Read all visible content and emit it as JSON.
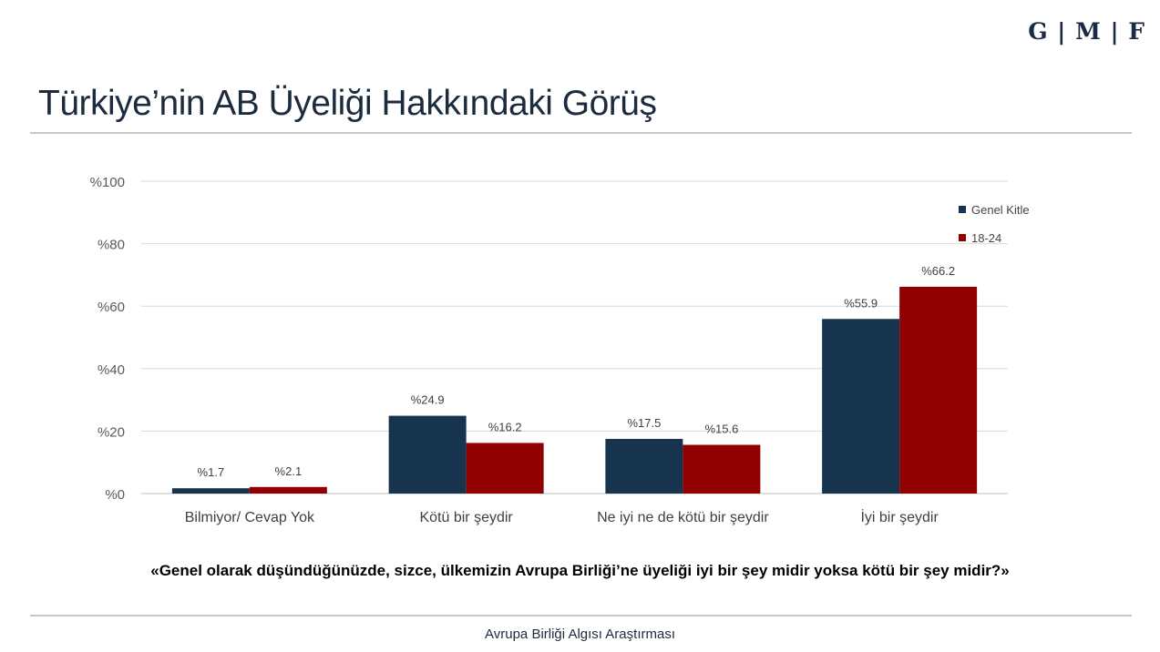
{
  "logo": "G | M | F",
  "title": "Türkiye’nin AB Üyeliği Hakkındaki Görüş",
  "question": "«Genel olarak düşündüğünüzde,  sizce, ülkemizin Avrupa Birliği’ne üyeliği iyi bir şey midir yoksa kötü bir şey midir?»",
  "footer": "Avrupa Birliği Algısı Araştırması",
  "chart_data": {
    "type": "bar",
    "categories": [
      "Bilmiyor/ Cevap Yok",
      "Kötü bir şeydir",
      "Ne iyi ne de kötü bir şeydir",
      "İyi bir şeydir"
    ],
    "series": [
      {
        "name": "Genel Kitle",
        "color": "#17344f",
        "values": [
          1.7,
          24.9,
          17.5,
          55.9
        ],
        "labels": [
          "%1.7",
          "%24.9",
          "%17.5",
          "%55.9"
        ]
      },
      {
        "name": "18-24",
        "color": "#900000",
        "values": [
          2.1,
          16.2,
          15.6,
          66.2
        ],
        "labels": [
          "%2.1",
          "%16.2",
          "%15.6",
          "%66.2"
        ]
      }
    ],
    "yticks": [
      {
        "value": 0,
        "label": "%0"
      },
      {
        "value": 20,
        "label": "%20"
      },
      {
        "value": 40,
        "label": "%40"
      },
      {
        "value": 60,
        "label": "%60"
      },
      {
        "value": 80,
        "label": "%80"
      },
      {
        "value": 100,
        "label": "%100"
      }
    ],
    "ylim": [
      0,
      100
    ],
    "grid": true,
    "legend_position": "top-right"
  }
}
